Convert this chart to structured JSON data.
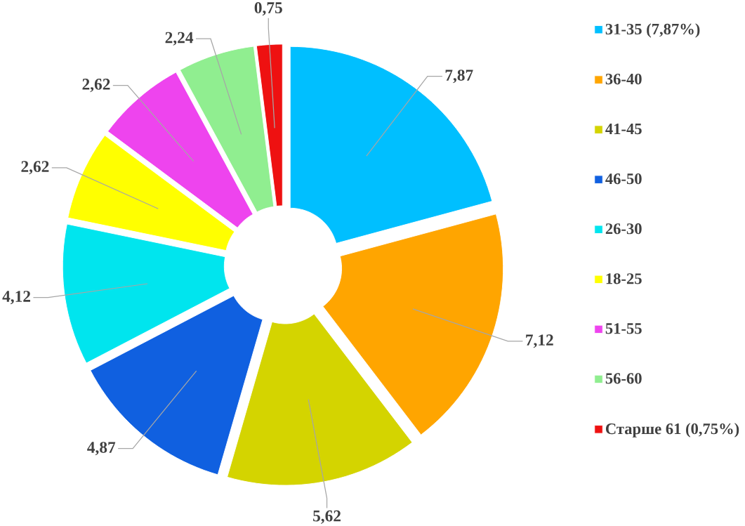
{
  "chart_data": {
    "type": "donut",
    "categories": [
      "31-35 (7,87%)",
      "36-40",
      "41-45",
      "46-50",
      "26-30",
      "18-25",
      "51-55",
      "56-60",
      "Старше 61 (0,75%)"
    ],
    "values": [
      7.87,
      7.12,
      5.62,
      4.87,
      4.12,
      2.62,
      2.62,
      2.24,
      0.75
    ],
    "value_labels": [
      "7,87",
      "7,12",
      "5,62",
      "4,87",
      "4,12",
      "2,62",
      "2,62",
      "2,24",
      "0,75"
    ],
    "colors": [
      "#00bfff",
      "#ffa500",
      "#d4d400",
      "#1060e0",
      "#00e5ee",
      "#ffff00",
      "#ee44ee",
      "#90ee90",
      "#ee1111"
    ],
    "legend": "right"
  }
}
